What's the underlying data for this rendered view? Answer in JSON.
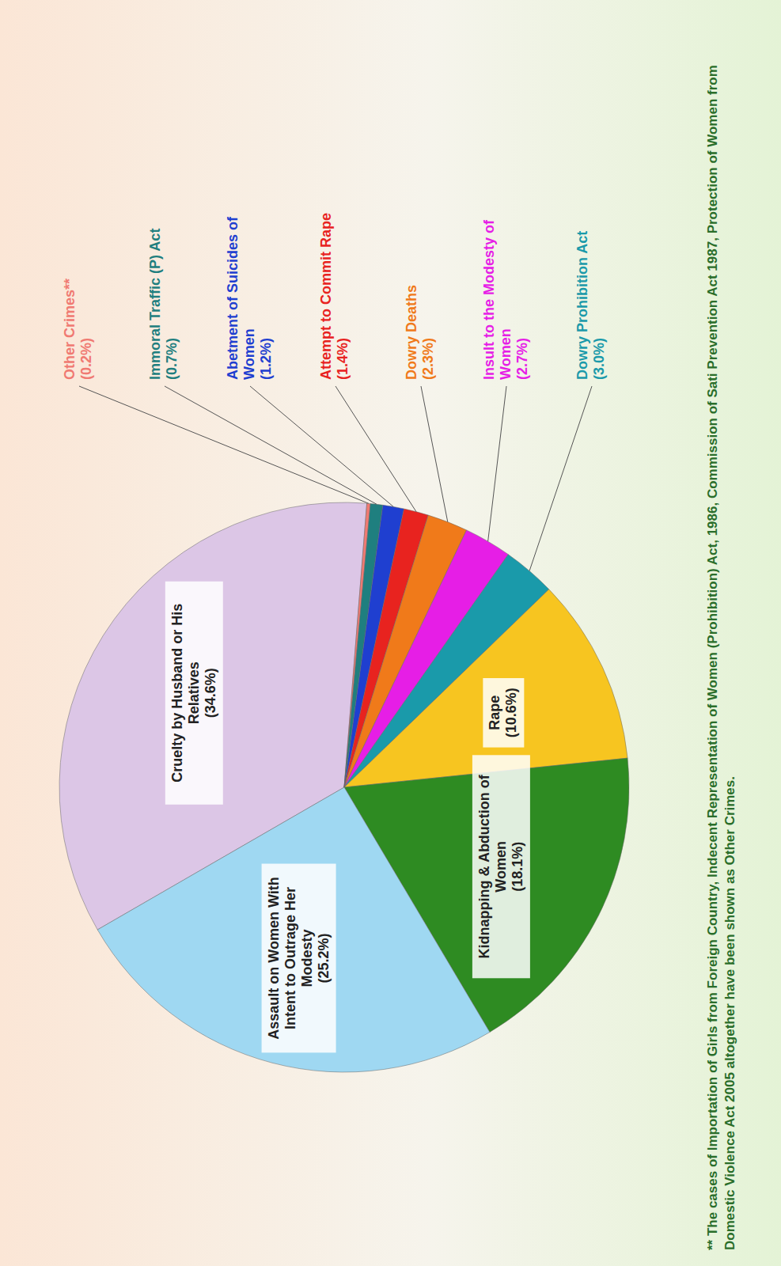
{
  "chart_data": {
    "type": "pie",
    "categories": [
      "Cruelty by Husband or His Relatives",
      "Other Crimes**",
      "Immoral Traffic (P) Act",
      "Abetment of Suicides of Women",
      "Attempt to Commit Rape",
      "Dowry Deaths",
      "Insult to the Modesty of Women",
      "Dowry Prohibition Act",
      "Rape",
      "Kidnapping & Abduction of Women",
      "Assault on Women With Intent to Outrage Her Modesty"
    ],
    "values": [
      34.6,
      0.2,
      0.7,
      1.2,
      1.4,
      2.3,
      2.7,
      3.0,
      10.6,
      18.1,
      25.2
    ],
    "value_labels": [
      "(34.6%)",
      "(0.2%)",
      "(0.7%)",
      "(1.2%)",
      "(1.4%)",
      "(2.3%)",
      "(2.7%)",
      "(3.0%)",
      "(10.6%)",
      "(18.1%)",
      "(25.2%)"
    ],
    "colors": [
      "#dcc6e6",
      "#f07a72",
      "#1f7f7f",
      "#1f3fd0",
      "#e8231f",
      "#f07a1a",
      "#e61ee6",
      "#1a9aaa",
      "#f7c520",
      "#2e8b22",
      "#9fd8f2"
    ],
    "data_labels": true,
    "annotations": [
      "** The cases of Importation of Girls from Foreign Country, Indecent Representation of Women (Prohibition) Act, 1986, Commission of Sati Prevention Act 1987, Protection of Women from Domestic Violence Act 2005 altogether have been shown as Other Crimes."
    ]
  }
}
